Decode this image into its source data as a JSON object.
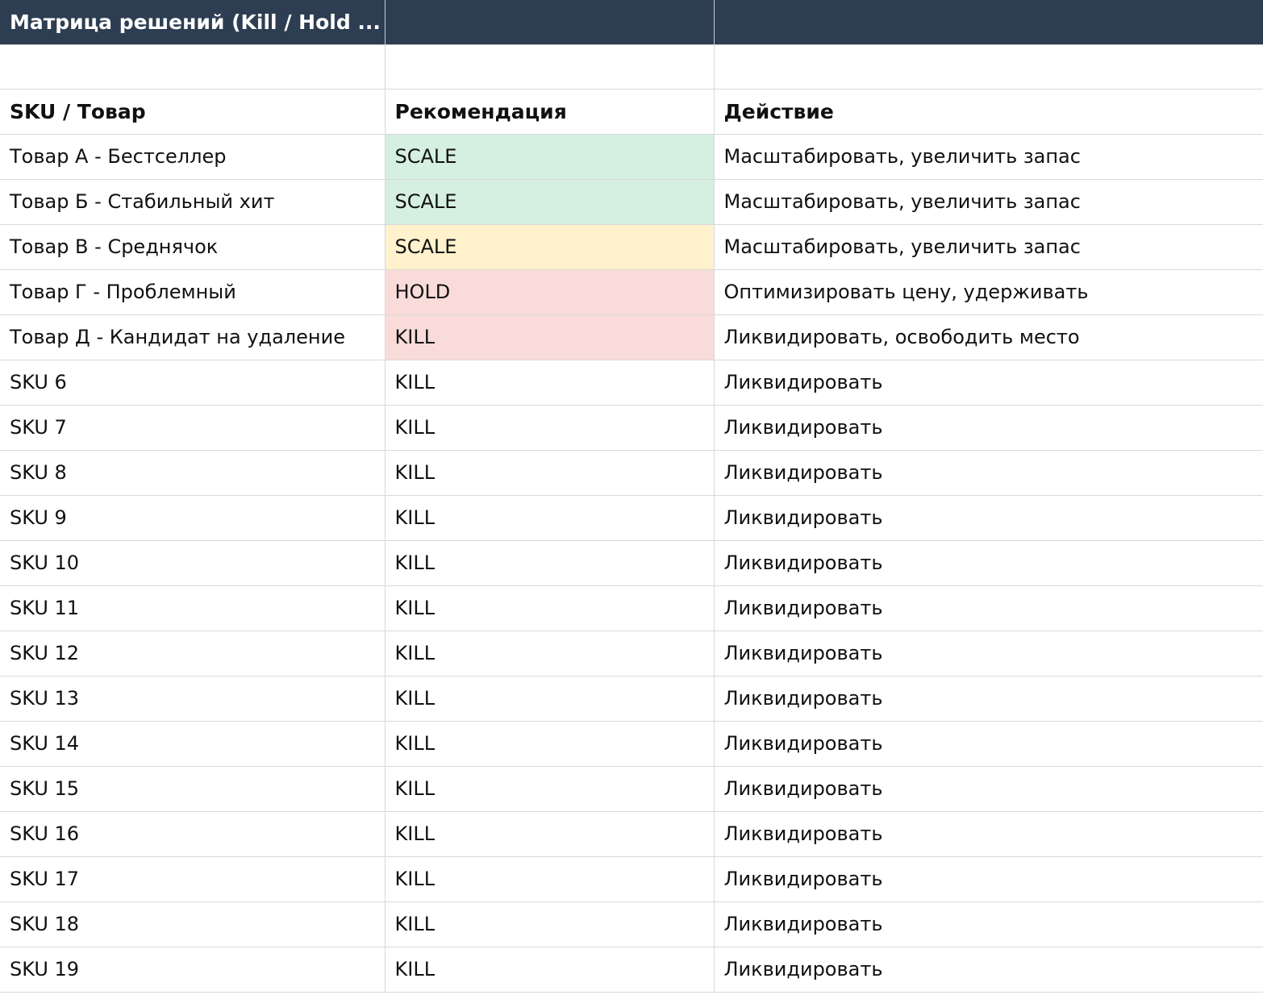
{
  "title_row": [
    "Матрица решений (Kill / Hold ...",
    "",
    ""
  ],
  "header": [
    "SKU / Товар",
    "Рекомендация",
    "Действие"
  ],
  "rows": [
    {
      "sku": "Товар А - Бестселлер",
      "rec": "SCALE",
      "action": "Масштабировать, увеличить запас",
      "color": "#d5efe0"
    },
    {
      "sku": "Товар Б - Стабильный хит",
      "rec": "SCALE",
      "action": "Масштабировать, увеличить запас",
      "color": "#d5efe0"
    },
    {
      "sku": "Товар В - Среднячок",
      "rec": "SCALE",
      "action": "Масштабировать, увеличить запас",
      "color": "#fff2cc"
    },
    {
      "sku": "Товар Г - Проблемный",
      "rec": "HOLD",
      "action": "Оптимизировать цену, удерживать",
      "color": "#f9dcd9"
    },
    {
      "sku": "Товар Д - Кандидат на удаление",
      "rec": "KILL",
      "action": "Ликвидировать, освободить место",
      "color": "#f9dcd9"
    },
    {
      "sku": "SKU 6",
      "rec": "KILL",
      "action": "Ликвидировать",
      "color": ""
    },
    {
      "sku": "SKU 7",
      "rec": "KILL",
      "action": "Ликвидировать",
      "color": ""
    },
    {
      "sku": "SKU 8",
      "rec": "KILL",
      "action": "Ликвидировать",
      "color": ""
    },
    {
      "sku": "SKU 9",
      "rec": "KILL",
      "action": "Ликвидировать",
      "color": ""
    },
    {
      "sku": "SKU 10",
      "rec": "KILL",
      "action": "Ликвидировать",
      "color": ""
    },
    {
      "sku": "SKU 11",
      "rec": "KILL",
      "action": "Ликвидировать",
      "color": ""
    },
    {
      "sku": "SKU 12",
      "rec": "KILL",
      "action": "Ликвидировать",
      "color": ""
    },
    {
      "sku": "SKU 13",
      "rec": "KILL",
      "action": "Ликвидировать",
      "color": ""
    },
    {
      "sku": "SKU 14",
      "rec": "KILL",
      "action": "Ликвидировать",
      "color": ""
    },
    {
      "sku": "SKU 15",
      "rec": "KILL",
      "action": "Ликвидировать",
      "color": ""
    },
    {
      "sku": "SKU 16",
      "rec": "KILL",
      "action": "Ликвидировать",
      "color": ""
    },
    {
      "sku": "SKU 17",
      "rec": "KILL",
      "action": "Ликвидировать",
      "color": ""
    },
    {
      "sku": "SKU 18",
      "rec": "KILL",
      "action": "Ликвидировать",
      "color": ""
    },
    {
      "sku": "SKU 19",
      "rec": "KILL",
      "action": "Ликвидировать",
      "color": ""
    }
  ]
}
